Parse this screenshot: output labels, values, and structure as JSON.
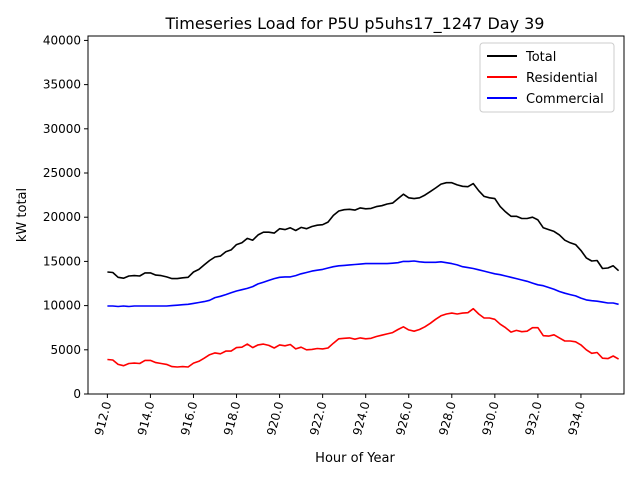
{
  "chart_data": {
    "type": "line",
    "title": "Timeseries Load for P5U p5uhs17_1247  Day 39",
    "xlabel": "Hour of Year",
    "ylabel": "kW total",
    "xlim": [
      911.1,
      936.0
    ],
    "ylim": [
      0,
      40500
    ],
    "x_ticks": [
      912.0,
      914.0,
      916.0,
      918.0,
      920.0,
      922.0,
      924.0,
      926.0,
      928.0,
      930.0,
      932.0,
      934.0
    ],
    "x_tick_labels": [
      "912.0",
      "914.0",
      "916.0",
      "918.0",
      "920.0",
      "922.0",
      "924.0",
      "926.0",
      "928.0",
      "930.0",
      "932.0",
      "934.0"
    ],
    "y_ticks": [
      0,
      5000,
      10000,
      15000,
      20000,
      25000,
      30000,
      35000,
      40000
    ],
    "y_tick_labels": [
      "0",
      "5000",
      "10000",
      "15000",
      "20000",
      "25000",
      "30000",
      "35000",
      "40000"
    ],
    "legend_position": "top-right",
    "x": [
      912.0,
      912.25,
      912.5,
      912.75,
      913.0,
      913.25,
      913.5,
      913.75,
      914.0,
      914.25,
      914.5,
      914.75,
      915.0,
      915.25,
      915.5,
      915.75,
      916.0,
      916.25,
      916.5,
      916.75,
      917.0,
      917.25,
      917.5,
      917.75,
      918.0,
      918.25,
      918.5,
      918.75,
      919.0,
      919.25,
      919.5,
      919.75,
      920.0,
      920.25,
      920.5,
      920.75,
      921.0,
      921.25,
      921.5,
      921.75,
      922.0,
      922.25,
      922.5,
      922.75,
      923.0,
      923.25,
      923.5,
      923.75,
      924.0,
      924.25,
      924.5,
      924.75,
      925.0,
      925.25,
      925.5,
      925.75,
      926.0,
      926.25,
      926.5,
      926.75,
      927.0,
      927.25,
      927.5,
      927.75,
      928.0,
      928.25,
      928.5,
      928.75,
      929.0,
      929.25,
      929.5,
      929.75,
      930.0,
      930.25,
      930.5,
      930.75,
      931.0,
      931.25,
      931.5,
      931.75,
      932.0,
      932.25,
      932.5,
      932.75,
      933.0,
      933.25,
      933.5,
      933.75,
      934.0,
      934.25,
      934.5,
      934.75,
      935.0,
      935.25,
      935.5,
      935.75
    ],
    "series": [
      {
        "name": "Total",
        "color": "#000000",
        "values": [
          13800,
          13750,
          13200,
          13100,
          13350,
          13400,
          13350,
          13700,
          13700,
          13450,
          13400,
          13250,
          13050,
          13050,
          13150,
          13200,
          13800,
          14100,
          14600,
          15100,
          15500,
          15600,
          16100,
          16300,
          16900,
          17100,
          17600,
          17400,
          18000,
          18300,
          18300,
          18200,
          18700,
          18600,
          18800,
          18500,
          18850,
          18700,
          18950,
          19100,
          19150,
          19450,
          20200,
          20700,
          20850,
          20900,
          20800,
          21050,
          20950,
          21000,
          21200,
          21300,
          21500,
          21600,
          22100,
          22600,
          22200,
          22100,
          22200,
          22500,
          22900,
          23300,
          23750,
          23900,
          23900,
          23650,
          23500,
          23450,
          23800,
          23000,
          22350,
          22200,
          22100,
          21200,
          20600,
          20100,
          20100,
          19850,
          19850,
          20000,
          19700,
          18800,
          18600,
          18400,
          18000,
          17400,
          17100,
          16900,
          16250,
          15400,
          15050,
          15100,
          14200,
          14250,
          14500,
          13950
        ]
      },
      {
        "name": "Residential",
        "color": "#ff0000",
        "values": [
          3900,
          3850,
          3350,
          3200,
          3450,
          3500,
          3450,
          3800,
          3800,
          3550,
          3450,
          3350,
          3100,
          3050,
          3100,
          3050,
          3500,
          3700,
          4050,
          4450,
          4650,
          4550,
          4850,
          4850,
          5250,
          5300,
          5650,
          5250,
          5550,
          5650,
          5500,
          5200,
          5550,
          5450,
          5600,
          5100,
          5300,
          5000,
          5050,
          5150,
          5100,
          5200,
          5750,
          6250,
          6300,
          6350,
          6200,
          6350,
          6250,
          6300,
          6500,
          6650,
          6800,
          6950,
          7300,
          7600,
          7250,
          7100,
          7300,
          7600,
          8000,
          8450,
          8850,
          9050,
          9150,
          9050,
          9150,
          9200,
          9650,
          9050,
          8600,
          8600,
          8450,
          7900,
          7500,
          7000,
          7200,
          7050,
          7100,
          7500,
          7500,
          6600,
          6550,
          6700,
          6350,
          6000,
          6000,
          5900,
          5550,
          5000,
          4600,
          4700,
          4050,
          4000,
          4300,
          3950
        ]
      },
      {
        "name": "Commercial",
        "color": "#0000ff",
        "values": [
          9950,
          9950,
          9900,
          9950,
          9900,
          9950,
          9950,
          9950,
          9950,
          9950,
          9950,
          9950,
          10000,
          10050,
          10100,
          10150,
          10250,
          10350,
          10450,
          10600,
          10900,
          11050,
          11250,
          11450,
          11650,
          11800,
          11950,
          12150,
          12450,
          12650,
          12850,
          13050,
          13200,
          13250,
          13250,
          13400,
          13600,
          13750,
          13900,
          14000,
          14100,
          14250,
          14400,
          14500,
          14550,
          14600,
          14650,
          14700,
          14750,
          14750,
          14750,
          14750,
          14750,
          14800,
          14850,
          15000,
          15000,
          15050,
          14950,
          14900,
          14900,
          14900,
          14950,
          14850,
          14750,
          14600,
          14400,
          14300,
          14200,
          14050,
          13900,
          13750,
          13600,
          13500,
          13350,
          13200,
          13050,
          12900,
          12750,
          12550,
          12350,
          12250,
          12050,
          11850,
          11600,
          11400,
          11250,
          11100,
          10850,
          10650,
          10550,
          10500,
          10400,
          10300,
          10300,
          10150
        ]
      }
    ]
  }
}
